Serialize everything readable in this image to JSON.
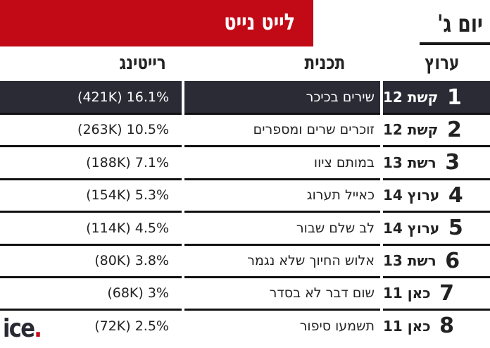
{
  "header": {
    "title": "לייט נייט",
    "day_tab": "יום ג'"
  },
  "columns": {
    "channel": "ערוץ",
    "program": "תכנית",
    "rating": "רייטינג"
  },
  "rows": [
    {
      "rank": "1",
      "channel": "קשת 12",
      "program": "שירים בכיכר",
      "rating": "(421K) 16.1%"
    },
    {
      "rank": "2",
      "channel": "קשת 12",
      "program": "זוכרים שרים ומספרים",
      "rating": "(263K) 10.5%"
    },
    {
      "rank": "3",
      "channel": "רשת 13",
      "program": "במותם ציוו",
      "rating": "(188K) 7.1%"
    },
    {
      "rank": "4",
      "channel": "ערוץ 14",
      "program": "כאייל תערוג",
      "rating": "(154K) 5.3%"
    },
    {
      "rank": "5",
      "channel": "ערוץ 14",
      "program": "לב שלם שבור",
      "rating": "(114K) 4.5%"
    },
    {
      "rank": "6",
      "channel": "רשת 13",
      "program": "אלוש החיוך שלא נגמר",
      "rating": "(80K) 3.8%"
    },
    {
      "rank": "7",
      "channel": "כאן 11",
      "program": "שום דבר לא בסדר",
      "rating": "(68K) 3%"
    },
    {
      "rank": "8",
      "channel": "כאן 11",
      "program": "תשמעו סיפור",
      "rating": "(72K) 2.5%"
    }
  ],
  "logo": {
    "text": "ice",
    "dot": "."
  },
  "colors": {
    "accent": "#c20a17",
    "highlight": "#2b2b36"
  }
}
